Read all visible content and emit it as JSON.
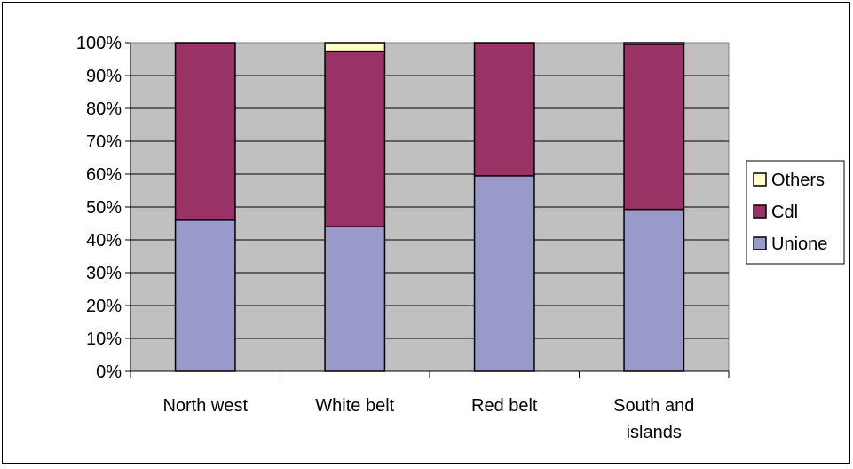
{
  "chart_data": {
    "type": "bar",
    "stacked": true,
    "categories": [
      "North west",
      "White belt",
      "Red belt",
      "South and islands"
    ],
    "series": [
      {
        "name": "Unione",
        "values": [
          46,
          44,
          59.5,
          49.3
        ],
        "color": "#9999cc"
      },
      {
        "name": "Cdl",
        "values": [
          54,
          53.4,
          40.5,
          50.2
        ],
        "color": "#993366"
      },
      {
        "name": "Others",
        "values": [
          0,
          2.6,
          0,
          0.5
        ],
        "color": "#ffffcc"
      }
    ],
    "yticks": [
      "0%",
      "10%",
      "20%",
      "30%",
      "40%",
      "50%",
      "60%",
      "70%",
      "80%",
      "90%",
      "100%"
    ],
    "ylim": [
      0,
      100
    ],
    "grid": true,
    "legend": "right",
    "legend_order": [
      "Others",
      "Cdl",
      "Unione"
    ],
    "plot_background": "#c0c0c0"
  }
}
